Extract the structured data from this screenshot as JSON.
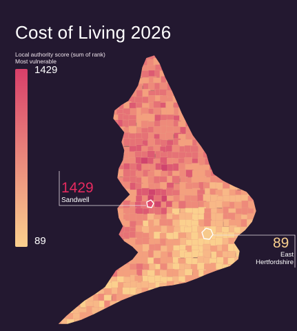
{
  "title": "Cost of Living 2026",
  "legend": {
    "caption_line1": "Local authority score (sum of rank)",
    "caption_line2": "Most vulnerable",
    "max_value": "1429",
    "min_value": "89",
    "max_color": "#d83f6a",
    "min_color": "#fbd08e"
  },
  "callouts": {
    "highest": {
      "value": "1429",
      "name": "Sandwell",
      "color": "#e52a5f"
    },
    "lowest": {
      "value": "89",
      "name_line1": "East",
      "name_line2": "Hertfordshire",
      "color": "#f8cf8e"
    }
  },
  "colors": {
    "background": "#231830",
    "palette": [
      "#fbd08e",
      "#f8b887",
      "#f4a07e",
      "#ee8a7a",
      "#e67276",
      "#dd5a72",
      "#d0446d"
    ]
  }
}
